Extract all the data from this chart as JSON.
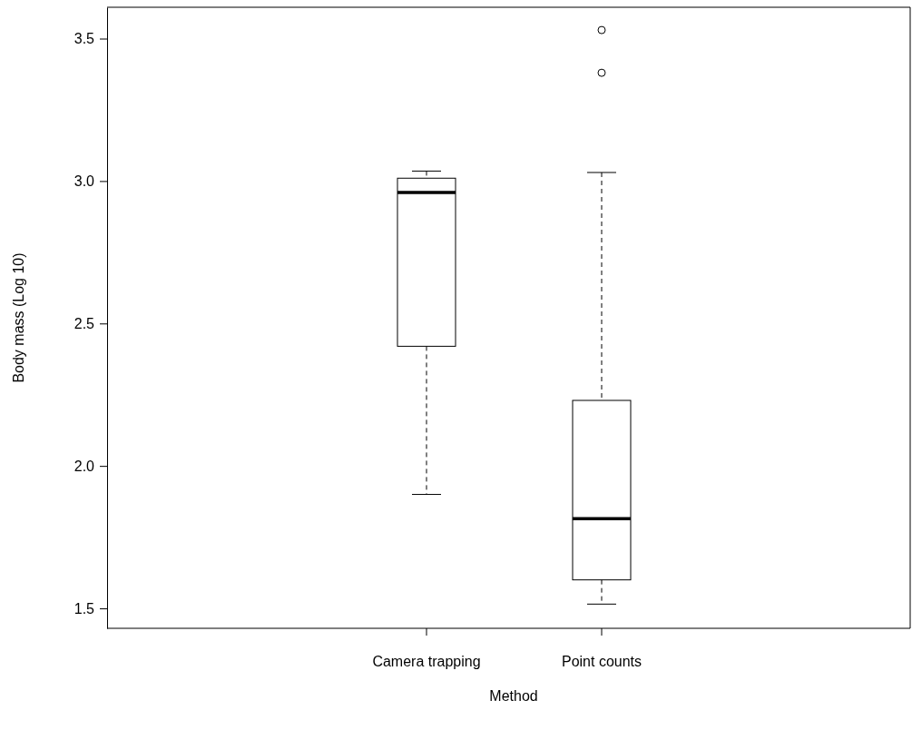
{
  "chart_data": {
    "type": "box",
    "xlabel": "Method",
    "ylabel": "Body mass (Log 10)",
    "categories": [
      "Camera trapping",
      "Point counts"
    ],
    "boxes": [
      {
        "low": 1.9,
        "q1": 2.42,
        "median": 2.96,
        "q3": 3.01,
        "high": 3.035
      },
      {
        "low": 1.515,
        "q1": 1.6,
        "median": 1.815,
        "q3": 2.23,
        "high": 3.03,
        "outliers": [
          3.38,
          3.53
        ]
      }
    ],
    "ylim": [
      1.43,
      3.61
    ],
    "yticks": [
      {
        "value": 1.5,
        "label": "1.5"
      },
      {
        "value": 2,
        "label": "2.0"
      },
      {
        "value": 2.5,
        "label": "2.5"
      },
      {
        "value": 3,
        "label": "3.0"
      },
      {
        "value": 3.5,
        "label": "3.5"
      }
    ],
    "grid": false
  }
}
